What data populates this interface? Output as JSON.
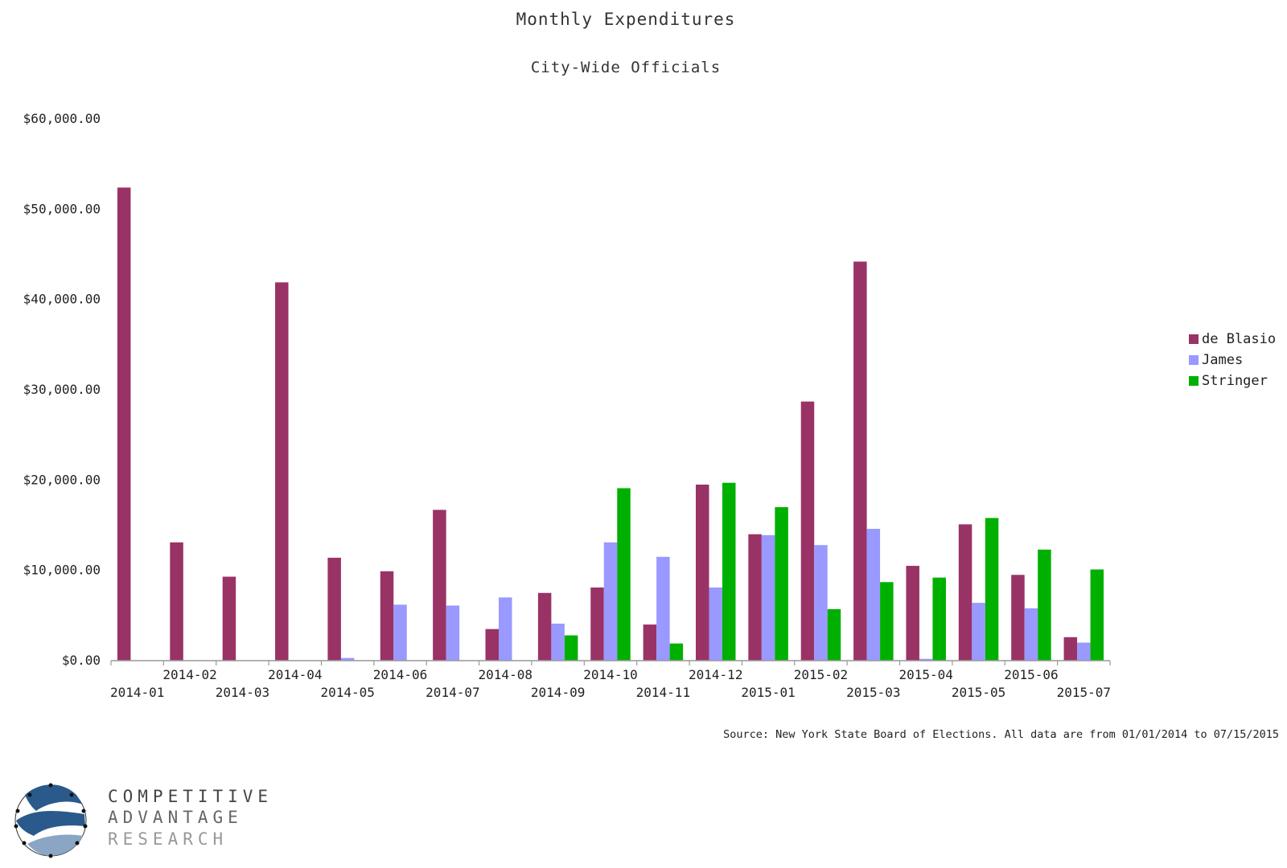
{
  "chart_data": {
    "type": "bar",
    "title": "Monthly Expenditures",
    "subtitle": "City-Wide Officials",
    "categories": [
      "2014-01",
      "2014-02",
      "2014-03",
      "2014-04",
      "2014-05",
      "2014-06",
      "2014-07",
      "2014-08",
      "2014-09",
      "2014-10",
      "2014-11",
      "2014-12",
      "2015-01",
      "2015-02",
      "2015-03",
      "2015-04",
      "2015-05",
      "2015-06",
      "2015-07"
    ],
    "y_tick_labels": [
      "$0.00",
      "$10,000.00",
      "$20,000.00",
      "$30,000.00",
      "$40,000.00",
      "$50,000.00",
      "$60,000.00"
    ],
    "ylim": [
      0,
      60000
    ],
    "grid": false,
    "legend_position": "right",
    "series": [
      {
        "name": "de Blasio",
        "color": "#993366",
        "values": [
          52400,
          13100,
          9300,
          41900,
          11400,
          9900,
          16700,
          3500,
          7500,
          8100,
          4000,
          19500,
          14000,
          28700,
          44200,
          10500,
          15100,
          9500,
          2600
        ]
      },
      {
        "name": "James",
        "color": "#9999ff",
        "values": [
          0,
          0,
          0,
          0,
          300,
          6200,
          6100,
          7000,
          4100,
          13100,
          11500,
          8100,
          13900,
          12800,
          14600,
          200,
          6400,
          5800,
          2000
        ]
      },
      {
        "name": "Stringer",
        "color": "#00b000",
        "values": [
          0,
          0,
          0,
          0,
          0,
          0,
          0,
          0,
          2800,
          19100,
          1900,
          19700,
          17000,
          5700,
          8700,
          9200,
          15800,
          12300,
          10100
        ]
      }
    ]
  },
  "source_note": "Source: New York State Board of Elections.  All data are from 01/01/2014 to 07/15/2015",
  "logo": {
    "line1": "COMPETITIVE",
    "line2": "ADVANTAGE",
    "line3": "RESEARCH",
    "color_dark": "#2a5a8c",
    "color_light": "#8aa6c4",
    "text_dark": "#444444",
    "text_mid": "#666666",
    "text_light": "#999999"
  }
}
